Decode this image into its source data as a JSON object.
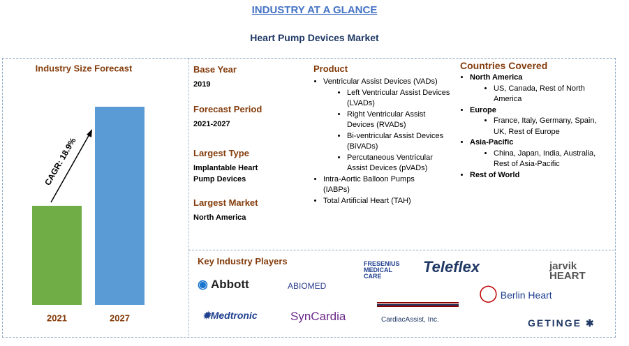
{
  "header": {
    "title": "INDUSTRY AT A GLANCE",
    "subtitle": "Heart Pump Devices Market"
  },
  "chart_data": {
    "type": "bar",
    "title": "Industry Size Forecast",
    "categories": [
      "2021",
      "2027"
    ],
    "values": [
      50,
      100
    ],
    "ylim": [
      0,
      100
    ],
    "colors": [
      "#70ad47",
      "#5b9bd5"
    ],
    "annotation": "CAGR: 18.9%"
  },
  "facts": [
    {
      "label": "Base Year",
      "value": "2019"
    },
    {
      "label": "Forecast Period",
      "value": "2021-2027"
    },
    {
      "label": "Largest Type",
      "value": "Implantable Heart Pump Devices"
    },
    {
      "label": "Largest Market",
      "value": "North America"
    }
  ],
  "product": {
    "title": "Product",
    "items": [
      {
        "text": "Ventricular Assist Devices (VADs)",
        "sub": [
          "Left Ventricular Assist Devices (LVADs)",
          "Right Ventricular Assist Devices (RVADs)",
          "Bi-ventricular Assist Devices (BiVADs)",
          "Percutaneous Ventricular Assist Devices (pVADs)"
        ]
      },
      {
        "text": "Intra-Aortic Balloon Pumps (IABPs)"
      },
      {
        "text": "Total Artificial Heart (TAH)"
      }
    ]
  },
  "countries": {
    "title": "Countries Covered",
    "items": [
      {
        "text": "North America",
        "sub": "US, Canada, Rest of North America"
      },
      {
        "text": "Europe",
        "sub": "France, Italy, Germany, Spain, UK, Rest of Europe"
      },
      {
        "text": "Asia-Pacific",
        "sub": "China, Japan, India, Australia, Rest of Asia-Pacific"
      },
      {
        "text": "Rest of World"
      }
    ]
  },
  "players": {
    "title": "Key Industry Players",
    "logos": [
      "Abbott",
      "ABIOMED",
      "FRESENIUS MEDICAL CARE",
      "Teleflex",
      "jarvik HEART",
      "Berlin Heart",
      "Medtronic",
      "SynCardia",
      "CardiacAssist, Inc.",
      "GETINGE"
    ]
  }
}
